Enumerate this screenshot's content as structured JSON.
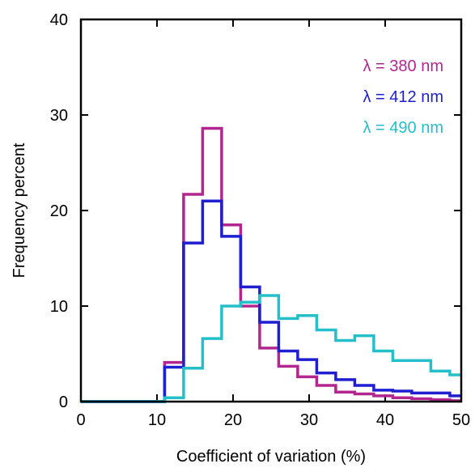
{
  "chart_data": {
    "type": "histogram",
    "xlabel": "Coefficient of variation (%)",
    "ylabel": "Frequency percent",
    "xlim": [
      0,
      50
    ],
    "ylim": [
      0,
      40
    ],
    "xticks": [
      "0",
      "10",
      "20",
      "30",
      "40",
      "50"
    ],
    "yticks": [
      "0",
      "10",
      "20",
      "30",
      "40"
    ],
    "grid": false,
    "legend_position": "top-right",
    "bin_edges": [
      0,
      2.5,
      5,
      7.5,
      10,
      11,
      13.5,
      16,
      18.5,
      21,
      23.5,
      26,
      28.5,
      31,
      33.5,
      36,
      38.5,
      41,
      43.5,
      46,
      48.5,
      50
    ],
    "series": [
      {
        "name": "λ = 380 nm",
        "color": "#b3268f",
        "values": [
          0,
          0,
          0,
          0,
          0,
          4.1,
          21.7,
          28.6,
          18.5,
          10.0,
          5.6,
          3.7,
          2.6,
          1.7,
          1.0,
          0.8,
          0.6,
          0.4,
          0.3,
          0.2,
          0.1
        ]
      },
      {
        "name": "λ = 412 nm",
        "color": "#1f1fcf",
        "values": [
          0,
          0,
          0,
          0,
          0,
          3.6,
          16.6,
          21.0,
          17.3,
          12.0,
          8.3,
          5.3,
          4.4,
          3.0,
          2.3,
          1.7,
          1.2,
          1.1,
          0.9,
          0.9,
          0.6
        ]
      },
      {
        "name": "λ = 490 nm",
        "color": "#25bfc9",
        "values": [
          0,
          0,
          0,
          0,
          0,
          0.4,
          3.5,
          6.6,
          10.0,
          10.4,
          11.1,
          8.7,
          9.0,
          7.5,
          6.4,
          6.9,
          5.3,
          4.3,
          4.3,
          3.2,
          2.8
        ]
      }
    ]
  }
}
